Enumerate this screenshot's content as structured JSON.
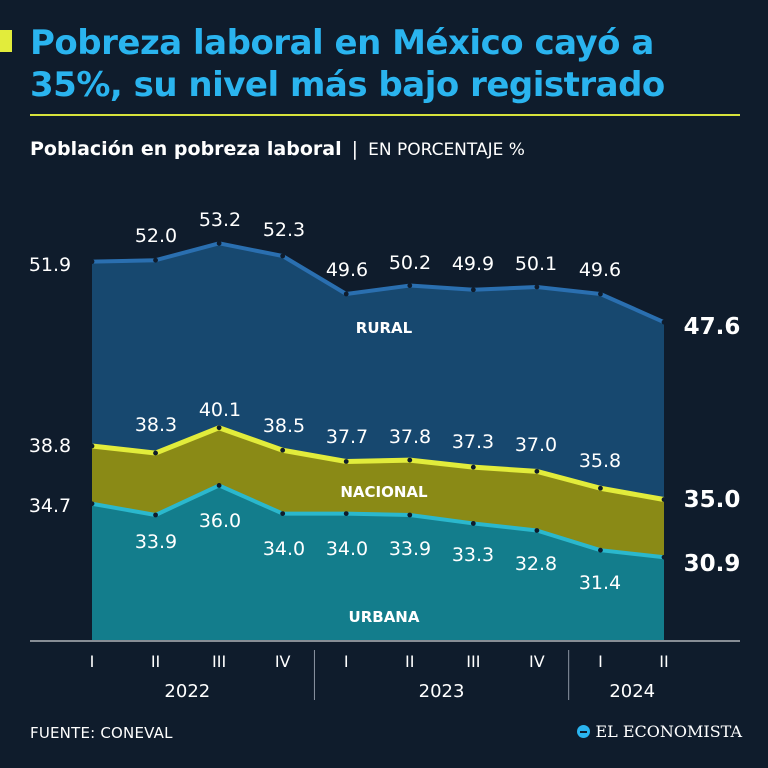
{
  "header": {
    "title": "Pobreza laboral en México cayó a 35%, su nivel más bajo registrado",
    "subtitle_main": "Población en pobreza laboral",
    "subtitle_sep": "|",
    "subtitle_unit": "EN PORCENTAJE %"
  },
  "footer": {
    "source": "FUENTE: CONEVAL",
    "brand": "EL ECONOMISTA"
  },
  "colors": {
    "rural_fill": "#17486f",
    "rural_line": "#2a6fb0",
    "nacional_fill": "#8a8a16",
    "nacional_line": "#e2ec3b",
    "urbana_fill": "#137d8c",
    "urbana_line": "#2bb8cd",
    "accent": "#2ab4ef"
  },
  "chart_data": {
    "type": "area",
    "x": [
      "I",
      "II",
      "III",
      "IV",
      "I",
      "II",
      "III",
      "IV",
      "I",
      "II"
    ],
    "years": [
      {
        "label": "2022",
        "quarters": 4
      },
      {
        "label": "2023",
        "quarters": 4
      },
      {
        "label": "2024",
        "quarters": 2
      }
    ],
    "series": [
      {
        "name": "RURAL",
        "values": [
          51.9,
          52.0,
          53.2,
          52.3,
          49.6,
          50.2,
          49.9,
          50.1,
          49.6,
          47.6
        ],
        "labels": [
          "51.9",
          "52.0",
          "53.2",
          "52.3",
          "49.6",
          "50.2",
          "49.9",
          "50.1",
          "49.6",
          "47.6"
        ]
      },
      {
        "name": "NACIONAL",
        "values": [
          38.8,
          38.3,
          40.1,
          38.5,
          37.7,
          37.8,
          37.3,
          37.0,
          35.8,
          35.0
        ],
        "labels": [
          "38.8",
          "38.3",
          "40.1",
          "38.5",
          "37.7",
          "37.8",
          "37.3",
          "37.0",
          "35.8",
          "35.0"
        ]
      },
      {
        "name": "URBANA",
        "values": [
          34.7,
          33.9,
          36.0,
          34.0,
          34.0,
          33.9,
          33.3,
          32.8,
          31.4,
          30.9
        ],
        "labels": [
          "34.7",
          "33.9",
          "36.0",
          "34.0",
          "34.0",
          "33.9",
          "33.3",
          "32.8",
          "31.4",
          "30.9"
        ]
      }
    ],
    "ylim": [
      13,
      56
    ],
    "grid": false,
    "legend": "inline"
  }
}
